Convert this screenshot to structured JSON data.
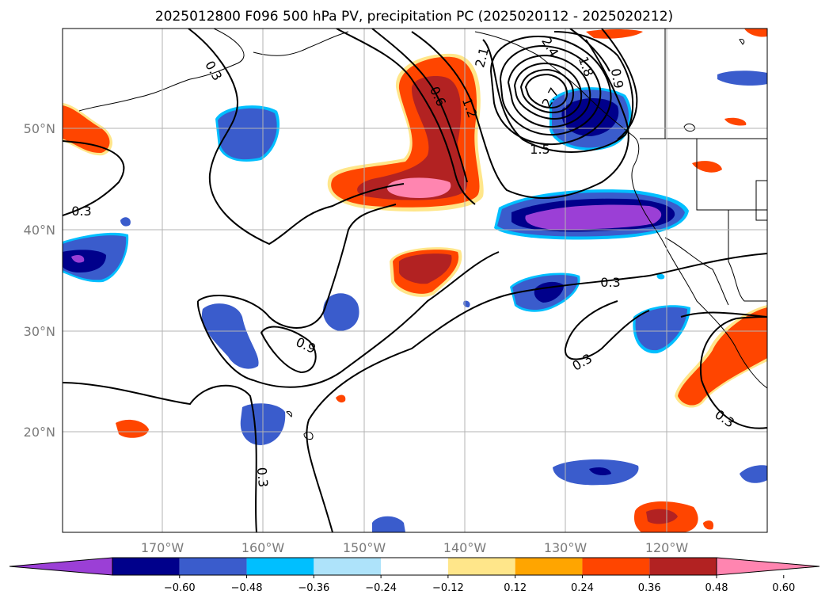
{
  "title": "2025012800 F096 500 hPa PV, precipitation PC (2025020112 - 2025020212)",
  "lat_labels": [
    "50°N",
    "40°N",
    "30°N",
    "20°N"
  ],
  "lon_labels": [
    "170°W",
    "160°W",
    "150°W",
    "140°W",
    "130°W",
    "120°W"
  ],
  "colorbar": {
    "ticks": [
      "−0.60",
      "−0.48",
      "−0.36",
      "−0.24",
      "−0.12",
      "0.12",
      "0.24",
      "0.36",
      "0.48",
      "0.60"
    ],
    "colors": [
      "#9b3fd6",
      "#00008b",
      "#3a5ccc",
      "#00bfff",
      "#aee3fa",
      "#ffffff",
      "#ffe68a",
      "#ffa500",
      "#ff4500",
      "#b22222",
      "#ff85b0"
    ],
    "extend": "both"
  },
  "contour_labels": [
    "0.3",
    "0.3",
    "0.3",
    "0.3",
    "0.3",
    "0.3",
    "0.6",
    "0.9",
    "0.9",
    "1.2",
    "1.5",
    "1.8",
    "2.1",
    "2.4",
    "2.7"
  ]
}
